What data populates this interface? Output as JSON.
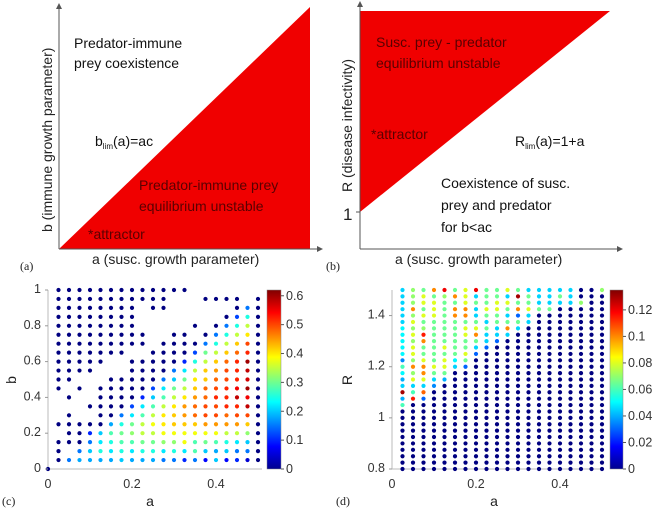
{
  "colors": {
    "region": "#f00000",
    "axis": "#555555"
  },
  "chart_data": [
    {
      "panel": "(a)",
      "type": "diagram",
      "xlabel": "a (susc. growth parameter)",
      "ylabel": "b (immune growth parameter)",
      "boundary": {
        "prefix": "b",
        "sub": "lim",
        "suffix": "(a)=ac"
      },
      "upper_region": [
        "Predator-immune",
        "prey coexistence"
      ],
      "red_region": [
        "Predator-immune prey",
        "equilibrium unstable"
      ],
      "attractor": "*attractor"
    },
    {
      "panel": "(b)",
      "type": "diagram",
      "xlabel": "a (susc. growth parameter)",
      "ylabel": "R (disease infectivity)",
      "y_tick": "1",
      "boundary": {
        "prefix": "R",
        "sub": "lim",
        "suffix": "(a)=1+a"
      },
      "red_region": [
        "Susc. prey - predator",
        "equilibrium unstable"
      ],
      "attractor": "*attractor",
      "lower_region": [
        "Coexistence of susc.",
        "prey and predator",
        "for b<ac"
      ]
    },
    {
      "panel": "(c)",
      "type": "scatter",
      "xlabel": "a",
      "ylabel": "b",
      "xlim": [
        0,
        0.5
      ],
      "ylim": [
        0,
        1
      ],
      "xticks": [
        "0",
        "0.2",
        "0.4"
      ],
      "xtick_values": [
        0,
        0.2,
        0.4
      ],
      "yticks": [
        "0",
        "0.2",
        "0.4",
        "0.6",
        "0.8",
        "1"
      ],
      "ytick_values": [
        0,
        0.2,
        0.4,
        0.6,
        0.8,
        1
      ],
      "colorbar": {
        "min": 0,
        "max": 0.62,
        "ticks": [
          "0",
          "0.1",
          "0.2",
          "0.3",
          "0.4",
          "0.5",
          "0.6"
        ],
        "tick_values": [
          0,
          0.1,
          0.2,
          0.3,
          0.4,
          0.5,
          0.6
        ],
        "colormap": "jet"
      },
      "a_values": [
        0.025,
        0.05,
        0.075,
        0.1,
        0.125,
        0.15,
        0.175,
        0.2,
        0.225,
        0.25,
        0.275,
        0.3,
        0.325,
        0.35,
        0.375,
        0.4,
        0.425,
        0.45,
        0.475,
        0.5
      ],
      "b_values_top_to_bottom": [
        1.0,
        0.95,
        0.9,
        0.85,
        0.8,
        0.75,
        0.7,
        0.65,
        0.6,
        0.55,
        0.5,
        0.45,
        0.4,
        0.35,
        0.3,
        0.25,
        0.2,
        0.15,
        0.1,
        0.05
      ],
      "extra_points": [
        {
          "a": 0,
          "b": 0,
          "value": 0
        }
      ],
      "grid_values": [
        [
          0,
          0,
          0,
          0,
          0,
          0,
          0,
          0,
          0,
          0,
          0,
          0,
          0,
          null,
          null,
          null,
          null,
          null,
          null,
          null
        ],
        [
          0,
          0,
          0,
          0,
          0,
          0,
          0,
          0,
          0,
          0,
          0,
          null,
          null,
          null,
          0,
          0,
          0,
          0,
          null,
          0
        ],
        [
          0,
          0,
          0,
          0,
          0,
          0,
          0,
          0,
          null,
          0,
          0,
          null,
          null,
          null,
          null,
          null,
          null,
          0,
          0.15,
          0
        ],
        [
          0,
          0,
          0,
          0,
          0,
          0,
          0,
          0,
          null,
          null,
          null,
          null,
          null,
          null,
          null,
          null,
          0,
          0.12,
          0.25,
          0
        ],
        [
          0,
          0,
          0,
          0,
          0,
          0,
          0,
          0,
          null,
          null,
          null,
          null,
          null,
          0,
          null,
          0,
          0.15,
          0.25,
          0.35,
          0
        ],
        [
          0,
          0,
          0,
          0,
          0,
          0,
          0,
          0,
          0,
          null,
          null,
          0,
          0,
          null,
          0,
          0.15,
          0.25,
          0.35,
          0.4,
          0
        ],
        [
          0,
          0,
          0,
          0,
          0,
          0,
          0,
          0,
          0,
          null,
          0,
          0,
          0,
          0,
          0.15,
          0.25,
          0.35,
          0.42,
          0.5,
          0
        ],
        [
          0,
          0,
          0,
          0,
          0,
          0,
          0,
          null,
          null,
          0,
          0,
          0,
          0,
          0.12,
          0.3,
          0.35,
          0.42,
          0.48,
          0.52,
          0
        ],
        [
          0,
          0,
          0,
          0,
          0,
          null,
          null,
          0,
          0,
          0,
          0,
          0,
          0.1,
          0.25,
          0.35,
          0.42,
          0.48,
          0.52,
          0.6,
          0
        ],
        [
          0,
          0,
          0,
          0,
          null,
          null,
          null,
          0,
          0,
          0,
          0,
          0.15,
          0.22,
          0.35,
          0.42,
          0.45,
          0.5,
          0.52,
          0.58,
          0
        ],
        [
          0,
          0,
          null,
          null,
          null,
          0,
          0,
          0,
          0,
          0,
          0.15,
          0.2,
          0.3,
          0.4,
          0.42,
          0.48,
          0.5,
          0.52,
          0.57,
          0
        ],
        [
          0,
          null,
          0,
          null,
          0,
          0,
          0,
          0,
          0,
          0.12,
          0.22,
          0.3,
          0.35,
          0.42,
          0.48,
          0.5,
          0.52,
          0.55,
          0.6,
          0
        ],
        [
          null,
          0,
          null,
          null,
          0,
          0,
          0,
          0,
          0.1,
          0.2,
          0.28,
          0.35,
          0.4,
          0.45,
          0.48,
          0.52,
          0.52,
          0.58,
          0.55,
          0
        ],
        [
          null,
          null,
          null,
          0,
          0,
          0,
          0,
          0.12,
          0.22,
          0.28,
          0.35,
          0.4,
          0.45,
          0.48,
          0.5,
          0.5,
          0.52,
          0.52,
          0.58,
          0
        ],
        [
          null,
          0,
          null,
          null,
          0,
          0,
          0.15,
          0.22,
          0.28,
          0.35,
          0.4,
          0.42,
          0.45,
          0.48,
          0.5,
          0.5,
          0.48,
          0.5,
          0.5,
          0
        ],
        [
          0,
          0,
          0,
          0,
          0,
          0.18,
          0.25,
          0.3,
          0.35,
          0.38,
          0.4,
          0.42,
          0.42,
          0.42,
          0.45,
          0.45,
          0.45,
          0.45,
          0.42,
          0
        ],
        [
          null,
          0,
          0,
          0.1,
          0.2,
          0.28,
          0.3,
          0.32,
          0.35,
          0.35,
          0.38,
          0.38,
          0.38,
          0.38,
          0.38,
          0.38,
          0.35,
          0.35,
          0.32,
          0
        ],
        [
          0,
          0,
          0,
          0.15,
          0.22,
          0.25,
          0.28,
          0.28,
          0.3,
          0.3,
          0.32,
          0.32,
          0.38,
          0.28,
          0.3,
          0.28,
          0.25,
          0.22,
          0.2,
          0
        ],
        [
          0,
          null,
          0.15,
          0.2,
          0.25,
          0.22,
          0.25,
          0.22,
          0.25,
          0.25,
          0.22,
          0.25,
          0.22,
          0.28,
          0.2,
          0.18,
          0.2,
          0.15,
          0.15,
          0
        ],
        [
          0,
          0.15,
          0.18,
          0.18,
          0.18,
          0.18,
          0.2,
          0.18,
          0.18,
          0.18,
          0.15,
          0.15,
          0.1,
          0.15,
          0.08,
          0.2,
          0.08,
          0.1,
          0.05,
          0
        ]
      ]
    },
    {
      "panel": "(d)",
      "type": "scatter",
      "xlabel": "a",
      "ylabel": "R",
      "xlim": [
        0,
        0.5
      ],
      "ylim": [
        0.8,
        1.5
      ],
      "xticks": [
        "0",
        "0.2",
        "0.4"
      ],
      "xtick_values": [
        0,
        0.2,
        0.4
      ],
      "yticks": [
        "0.8",
        "1",
        "1.2",
        "1.4"
      ],
      "ytick_values": [
        0.8,
        1.0,
        1.2,
        1.4
      ],
      "colorbar": {
        "min": 0,
        "max": 0.135,
        "ticks": [
          "0",
          "0.02",
          "0.04",
          "0.06",
          "0.08",
          "0.1",
          "0.12"
        ],
        "tick_values": [
          0,
          0.02,
          0.04,
          0.06,
          0.08,
          0.1,
          0.12
        ],
        "colormap": "jet"
      },
      "a_values": [
        0.025,
        0.05,
        0.075,
        0.1,
        0.125,
        0.15,
        0.175,
        0.2,
        0.225,
        0.25,
        0.275,
        0.3,
        0.325,
        0.35,
        0.375,
        0.4,
        0.425,
        0.45,
        0.475,
        0.5
      ],
      "R_top": 1.5,
      "R_step": -0.025,
      "R_count": 29,
      "below_listed_value": 0,
      "column_values_top_down": [
        [
          0.045,
          0.045,
          0.045,
          0.045,
          0.045,
          0.045,
          0.05,
          0.05,
          0.05,
          0.05,
          0.05,
          0.035,
          0.06,
          0.05,
          0.04,
          0.045,
          0.13,
          0.04,
          0.06
        ],
        [
          0.07,
          0.07,
          0.07,
          0.1,
          0.07,
          0.08,
          0.07,
          0.08,
          0.07,
          0.08,
          0.08,
          0.07,
          0.1,
          0.07,
          0.08,
          0.045,
          0.06,
          0.115
        ],
        [
          0.065,
          0.08,
          0.08,
          0.065,
          0.08,
          0.065,
          0.07,
          0.115,
          0.1,
          0.065,
          0.065,
          0.08,
          0.1,
          0.1,
          0.08,
          0.045,
          0.105,
          0.03
        ],
        [
          0.1,
          0.065,
          0.08,
          0.08,
          0.08,
          0.065,
          0.065,
          0.065,
          0.065,
          0.065,
          0.065,
          0.065,
          0.08,
          0.065,
          0.045,
          0.035
        ],
        [
          0.12,
          0.07,
          0.065,
          0.065,
          0.065,
          0.065,
          0.065,
          0.065,
          0.065,
          0.08,
          0.065,
          0.08,
          0.08,
          0.065,
          0.04
        ],
        [
          0.065,
          0.1,
          0.065,
          0.1,
          0.1,
          0.065,
          0.065,
          0.065,
          0.065,
          0.065,
          0.065,
          0.05,
          0.045
        ],
        [
          0.08,
          0.08,
          0.08,
          0.1,
          0.1,
          0.065,
          0.08,
          0.08,
          0.065,
          0.065,
          0.08,
          0.065,
          0.03
        ],
        [
          0.12,
          0.045,
          0.065,
          0.045,
          0.045,
          0.065,
          0.08,
          0.1,
          0.065,
          0.045,
          0.03
        ],
        [
          0.065,
          0.065,
          0.065,
          0.08,
          0.065,
          0.045,
          0.065,
          0.045,
          0.045,
          0.03
        ],
        [
          0.065,
          0.065,
          0.08,
          0.08,
          0.065,
          0.065,
          0.045,
          0.045,
          0.03
        ],
        [
          0.08,
          0.045,
          0.08,
          0.065,
          0.045,
          0.065,
          0.1,
          0.045
        ],
        [
          0.065,
          0.13,
          0.065,
          0.1,
          0.03,
          0.065,
          0.045
        ],
        [
          0.045,
          0.065,
          0.065,
          0.08,
          0.045,
          0.045
        ],
        [
          0.045,
          0.045,
          0.045,
          0.065
        ],
        [
          0.045,
          0.045,
          0.045,
          0.065
        ],
        [
          0.045,
          0.065,
          0.045
        ],
        [
          0.045,
          0.045,
          0.045
        ],
        [
          0,
          0,
          0.07
        ],
        [],
        [
          0.07
        ]
      ]
    }
  ]
}
